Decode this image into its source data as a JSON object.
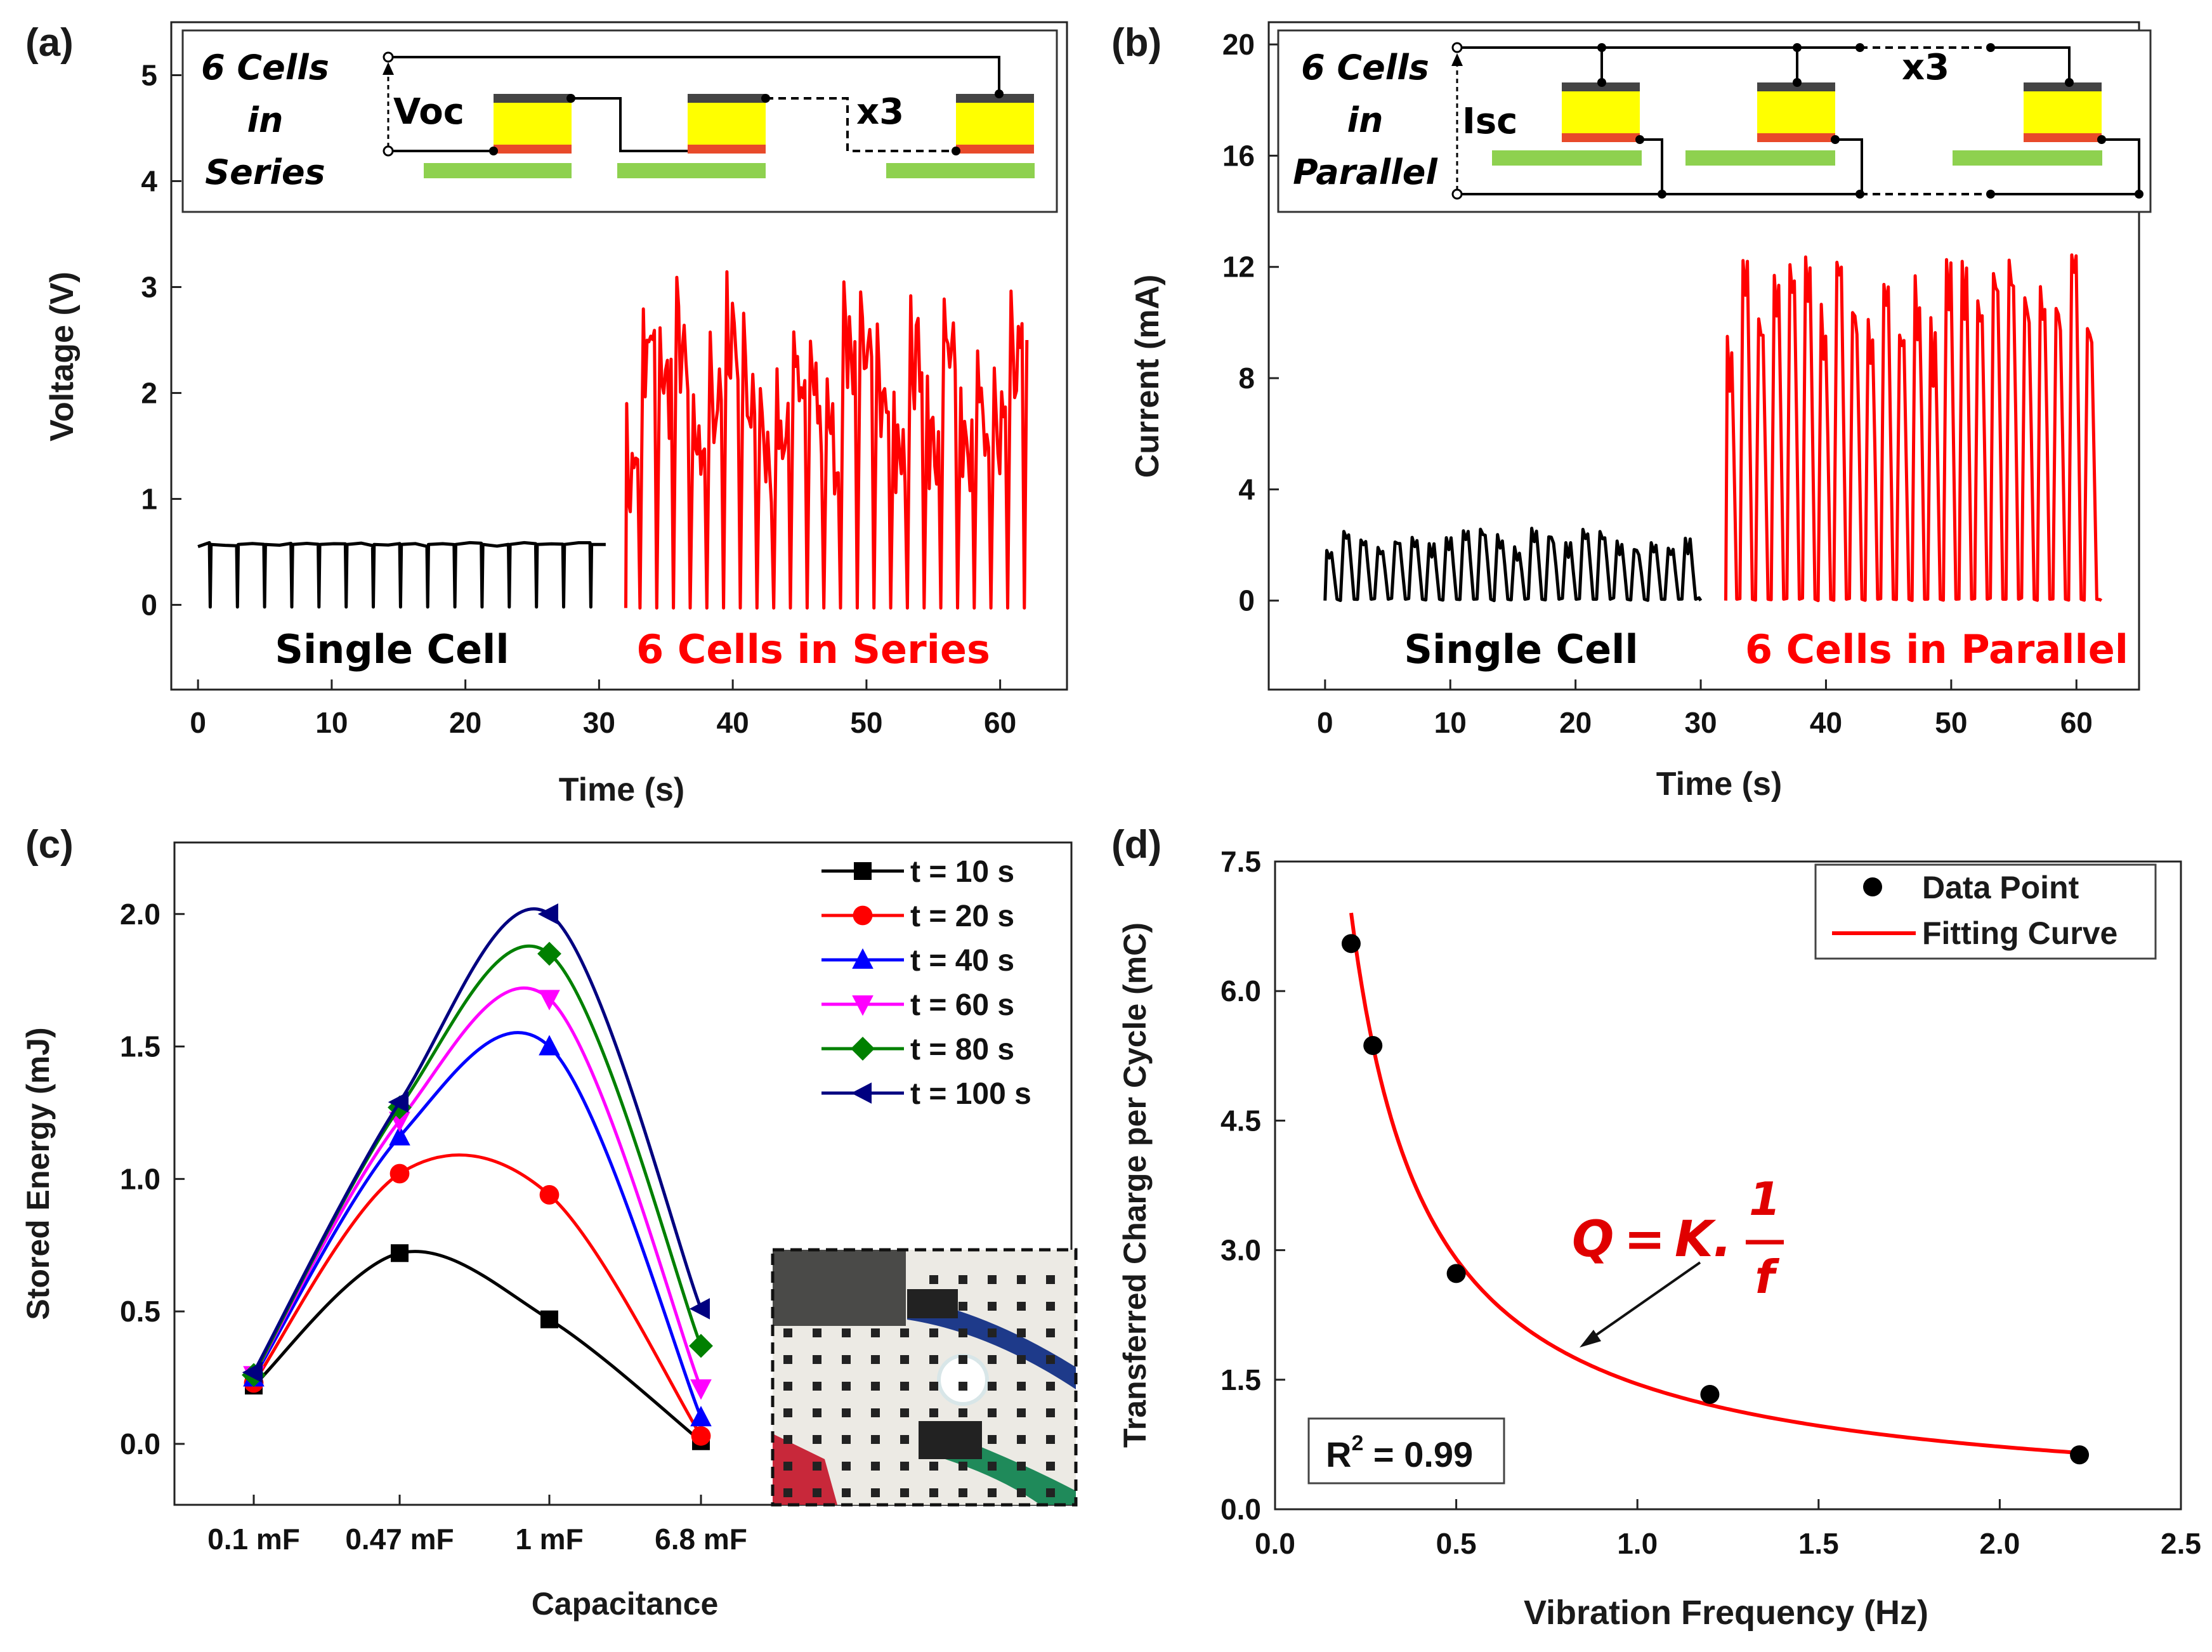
{
  "panels": {
    "a": {
      "label": "(a)"
    },
    "b": {
      "label": "(b)"
    },
    "c": {
      "label": "(c)"
    },
    "d": {
      "label": "(d)"
    }
  },
  "chart_data": [
    {
      "id": "a",
      "type": "line",
      "title": "",
      "xlabel": "Time (s)",
      "ylabel": "Voltage (V)",
      "xlim": [
        -2,
        65
      ],
      "ylim": [
        -0.8,
        5.5
      ],
      "xticks": [
        0,
        10,
        20,
        30,
        40,
        50,
        60
      ],
      "yticks": [
        0,
        1,
        2,
        3,
        4,
        5
      ],
      "colors": {
        "single": "#000000",
        "multi": "#ff0000"
      },
      "series": [
        {
          "name": "Single Cell",
          "color": "#000000",
          "t_range": [
            0,
            30.5
          ],
          "high": 0.57,
          "low": -0.02,
          "pulses": 15
        },
        {
          "name": "6 Cells in Series",
          "color": "#ff0000",
          "t_range": [
            32,
            62
          ],
          "high_range": [
            1.9,
            3.2
          ],
          "low": -0.03,
          "pulses": 24
        }
      ],
      "annotations": {
        "left": "Single Cell",
        "right": "6 Cells in Series"
      },
      "inset": {
        "line1": "6 Cells",
        "line2": "in",
        "line3": "Series",
        "meas": "Voc",
        "mult": "x3"
      }
    },
    {
      "id": "b",
      "type": "line",
      "title": "",
      "xlabel": "Time (s)",
      "ylabel": "Current (mA)",
      "xlim": [
        -4.5,
        65
      ],
      "ylim": [
        -3.2,
        20.8
      ],
      "xticks": [
        0,
        10,
        20,
        30,
        40,
        50,
        60
      ],
      "yticks": [
        0,
        4,
        8,
        12,
        16,
        20
      ],
      "colors": {
        "single": "#000000",
        "multi": "#ff0000"
      },
      "series": [
        {
          "name": "Single Cell",
          "color": "#000000",
          "t_range": [
            0,
            30
          ],
          "high_range": [
            1.8,
            2.6
          ],
          "low": 0.0,
          "pulses": 22
        },
        {
          "name": "6 Cells in Parallel",
          "color": "#ff0000",
          "t_range": [
            32,
            62
          ],
          "high_range": [
            9.5,
            12.5
          ],
          "low": 0.0,
          "pulses": 24
        }
      ],
      "annotations": {
        "left": "Single Cell",
        "right": "6 Cells in Parallel"
      },
      "inset": {
        "line1": "6 Cells",
        "line2": "in",
        "line3": "Parallel",
        "meas": "Isc",
        "mult": "x3"
      }
    },
    {
      "id": "c",
      "type": "line",
      "title": "",
      "xlabel": "Capacitance",
      "ylabel": "Stored Energy (mJ)",
      "categories": [
        "0.1 mF",
        "0.47 mF",
        "1 mF",
        "6.8 mF"
      ],
      "ylim": [
        -0.23,
        2.27
      ],
      "yticks": [
        "0.0",
        "0.5",
        "1.0",
        "1.5",
        "2.0"
      ],
      "series": [
        {
          "name": "t = 10 s",
          "color": "#000000",
          "marker": "square",
          "values": [
            0.22,
            0.72,
            0.47,
            0.01
          ]
        },
        {
          "name": "t = 20 s",
          "color": "#ff0000",
          "marker": "circle",
          "values": [
            0.23,
            1.02,
            0.94,
            0.03
          ]
        },
        {
          "name": "t = 40 s",
          "color": "#0000ff",
          "marker": "triangle-up",
          "values": [
            0.25,
            1.16,
            1.5,
            0.1
          ]
        },
        {
          "name": "t = 60 s",
          "color": "#ff00ff",
          "marker": "triangle-down",
          "values": [
            0.26,
            1.22,
            1.68,
            0.21
          ]
        },
        {
          "name": "t = 80 s",
          "color": "#008000",
          "marker": "diamond",
          "values": [
            0.26,
            1.27,
            1.85,
            0.37
          ]
        },
        {
          "name": "t = 100 s",
          "color": "#000080",
          "marker": "triangle-left",
          "values": [
            0.27,
            1.29,
            2.0,
            0.51
          ]
        }
      ]
    },
    {
      "id": "d",
      "type": "scatter",
      "title": "",
      "xlabel": "Vibration Frequency (Hz)",
      "ylabel": "Transferred Charge per Cycle (mC)",
      "xlim": [
        0.0,
        2.5
      ],
      "ylim": [
        0.0,
        7.5
      ],
      "xticks": [
        "0.0",
        "0.5",
        "1.0",
        "1.5",
        "2.0",
        "2.5"
      ],
      "yticks": [
        "0.0",
        "1.5",
        "3.0",
        "4.5",
        "6.0",
        "7.5"
      ],
      "series": [
        {
          "name": "Data Point",
          "color": "#000000",
          "x": [
            0.21,
            0.27,
            0.5,
            1.2,
            2.22
          ],
          "y": [
            6.55,
            5.37,
            2.73,
            1.33,
            0.63
          ]
        },
        {
          "name": "Fitting Curve",
          "color": "#ff0000",
          "model": "K/f",
          "K": 1.45,
          "x_range": [
            0.21,
            2.22
          ]
        }
      ],
      "equation": {
        "q": "Q",
        "eq": "=",
        "k": "K.",
        "num": "1",
        "den": "f"
      },
      "r2": {
        "prefix": "R",
        "sup": "2",
        "value": " = 0.99"
      }
    }
  ]
}
